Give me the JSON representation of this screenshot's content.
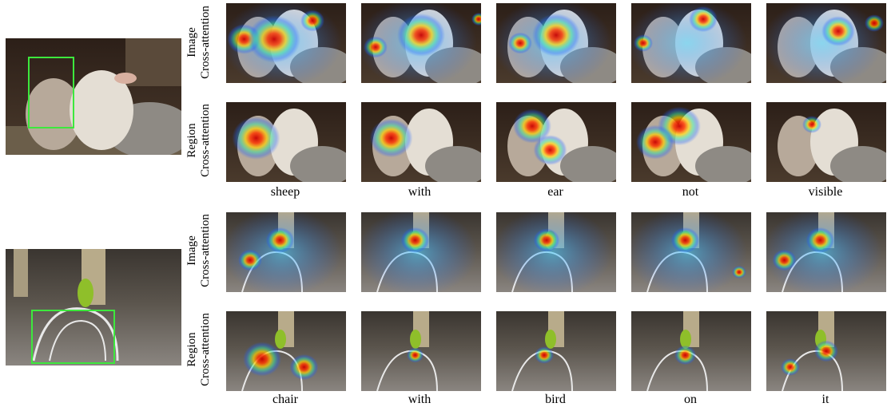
{
  "figure": {
    "example_1": {
      "source_image": "sheep-photo-with-green-box",
      "rows": [
        {
          "label_line1": "Image",
          "label_line2": "Cross-attention"
        },
        {
          "label_line1": "Region",
          "label_line2": "Cross-attention"
        }
      ],
      "words": [
        "sheep",
        "with",
        "ear",
        "not",
        "visible"
      ]
    },
    "example_2": {
      "source_image": "parrot-on-chair-photo-with-green-box",
      "rows": [
        {
          "label_line1": "Image",
          "label_line2": "Cross-attention"
        },
        {
          "label_line1": "Region",
          "label_line2": "Cross-attention"
        }
      ],
      "words": [
        "chair",
        "with",
        "bird",
        "on",
        "it"
      ]
    },
    "colors": {
      "box": "#3de83d",
      "heat_hot": "#d40000",
      "heat_warm": "#ffd200",
      "heat_mid": "#3de0a0",
      "heat_cool": "#1e64ff"
    }
  }
}
